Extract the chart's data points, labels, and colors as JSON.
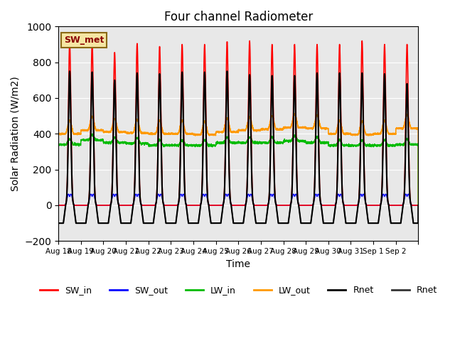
{
  "title": "Four channel Radiometer",
  "xlabel": "Time",
  "ylabel": "Solar Radiation (W/m2)",
  "ylim": [
    -200,
    1000
  ],
  "annotation": "SW_met",
  "background_color": "#e8e8e8",
  "legend_entries": [
    {
      "label": "SW_in",
      "color": "#ff0000"
    },
    {
      "label": "SW_out",
      "color": "#0000ff"
    },
    {
      "label": "LW_in",
      "color": "#00bb00"
    },
    {
      "label": "LW_out",
      "color": "#ff9900"
    },
    {
      "label": "Rnet",
      "color": "#000000"
    },
    {
      "label": "Rnet",
      "color": "#000000"
    }
  ],
  "num_days": 16,
  "SW_in_peaks": [
    910,
    910,
    855,
    905,
    888,
    900,
    900,
    915,
    920,
    900,
    900,
    900,
    900,
    920,
    900,
    900
  ],
  "SW_out_peak": 70,
  "LW_in_base": 340,
  "LW_out_base": 400,
  "Rnet_day_peak": 730,
  "Rnet_night": -100,
  "points_per_day": 288,
  "tick_labels": [
    "Aug 18",
    "Aug 19",
    "Aug 20",
    "Aug 21",
    "Aug 22",
    "Aug 23",
    "Aug 24",
    "Aug 25",
    "Aug 26",
    "Aug 27",
    "Aug 28",
    "Aug 29",
    "Aug 30",
    "Aug 31",
    "Sep 1",
    "Sep 2"
  ]
}
